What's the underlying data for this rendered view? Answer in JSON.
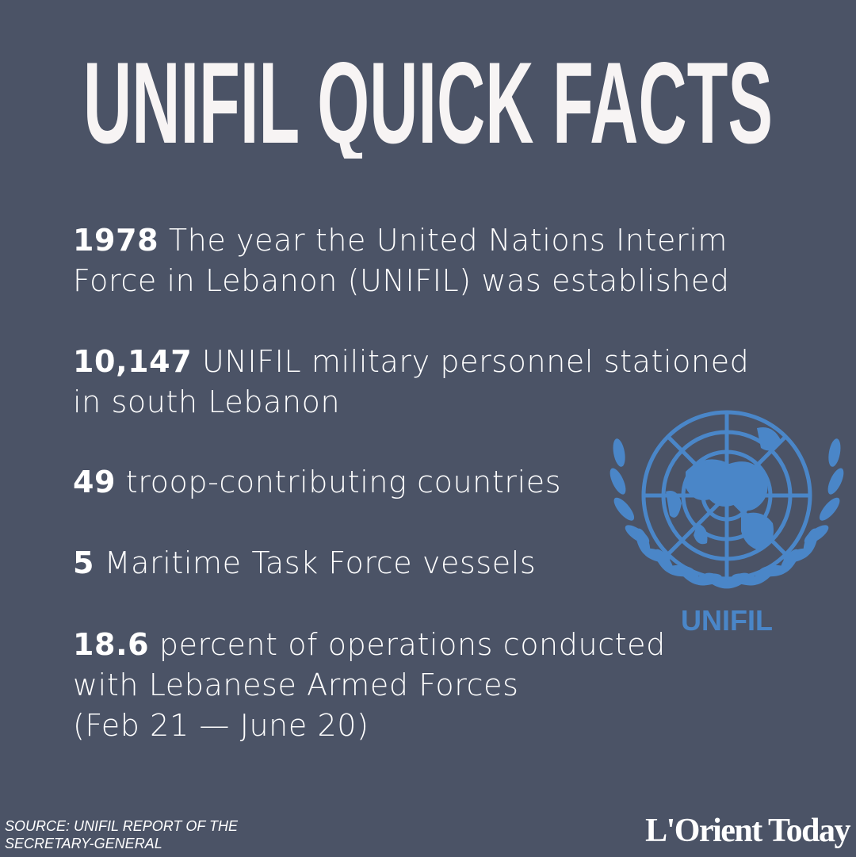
{
  "header": {
    "title": "UNIFIL QUICK FACTS"
  },
  "facts": [
    {
      "number": "1978",
      "lines": [
        "The year the United Nations Interim",
        "Force in Lebanon (UNIFIL) was established"
      ]
    },
    {
      "number": "10,147",
      "lines": [
        "UNIFIL military personnel stationed",
        "in south Lebanon"
      ]
    },
    {
      "number": "49",
      "lines": [
        "troop-contributing countries"
      ]
    },
    {
      "number": "5",
      "lines": [
        "Maritime Task Force vessels"
      ]
    },
    {
      "number": "18.6",
      "lines": [
        "percent of operations conducted",
        "with Lebanese Armed Forces",
        "(Feb 21 — June 20)"
      ]
    }
  ],
  "logo": {
    "label": "UNIFIL"
  },
  "footer": {
    "source": [
      "SOURCE: UNIFIL REPORT OF THE",
      "SECRETARY-GENERAL"
    ],
    "brand": "L'Orient Today"
  }
}
